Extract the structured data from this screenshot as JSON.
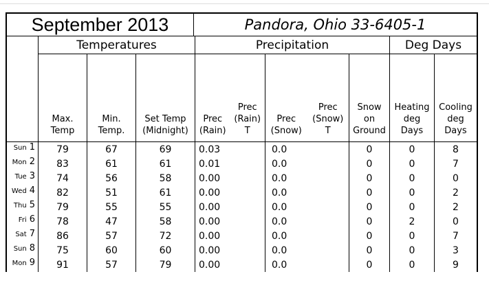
{
  "title": {
    "month": "September 2013",
    "station": "Pandora, Ohio 33-6405-1"
  },
  "groups": {
    "temperatures": "Temperatures",
    "precipitation": "Precipitation",
    "deg_days": "Deg Days"
  },
  "columns": {
    "max_temp": "Max.\nTemp",
    "min_temp": "Min.\nTemp.",
    "set_temp": "Set Temp\n(Midnight)",
    "prec_rain": "Prec\n(Rain)",
    "prec_rain_t": "Prec\n(Rain)\nT",
    "prec_snow": "Prec\n(Snow)",
    "prec_snow_t": "Prec\n(Snow)\nT",
    "snow_on_ground": "Snow\non\nGround",
    "heating_deg_days": "Heating\ndeg\nDays",
    "cooling_deg_days": "Cooling\ndeg\nDays"
  },
  "table": {
    "rows": [
      {
        "day_name": "Sun",
        "day_num": "1",
        "max": "79",
        "min": "67",
        "set": "69",
        "prec_rain": "0.03",
        "prec_rain_t": "",
        "prec_snow": "0.0",
        "prec_snow_t": "",
        "snow_ground": "0",
        "heating": "0",
        "cooling": "8"
      },
      {
        "day_name": "Mon",
        "day_num": "2",
        "max": "83",
        "min": "61",
        "set": "61",
        "prec_rain": "0.01",
        "prec_rain_t": "",
        "prec_snow": "0.0",
        "prec_snow_t": "",
        "snow_ground": "0",
        "heating": "0",
        "cooling": "7"
      },
      {
        "day_name": "Tue",
        "day_num": "3",
        "max": "74",
        "min": "56",
        "set": "58",
        "prec_rain": "0.00",
        "prec_rain_t": "",
        "prec_snow": "0.0",
        "prec_snow_t": "",
        "snow_ground": "0",
        "heating": "0",
        "cooling": "0"
      },
      {
        "day_name": "Wed",
        "day_num": "4",
        "max": "82",
        "min": "51",
        "set": "61",
        "prec_rain": "0.00",
        "prec_rain_t": "",
        "prec_snow": "0.0",
        "prec_snow_t": "",
        "snow_ground": "0",
        "heating": "0",
        "cooling": "2"
      },
      {
        "day_name": "Thu",
        "day_num": "5",
        "max": "79",
        "min": "55",
        "set": "55",
        "prec_rain": "0.00",
        "prec_rain_t": "",
        "prec_snow": "0.0",
        "prec_snow_t": "",
        "snow_ground": "0",
        "heating": "0",
        "cooling": "2"
      },
      {
        "day_name": "Fri",
        "day_num": "6",
        "max": "78",
        "min": "47",
        "set": "58",
        "prec_rain": "0.00",
        "prec_rain_t": "",
        "prec_snow": "0.0",
        "prec_snow_t": "",
        "snow_ground": "0",
        "heating": "2",
        "cooling": "0"
      },
      {
        "day_name": "Sat",
        "day_num": "7",
        "max": "86",
        "min": "57",
        "set": "72",
        "prec_rain": "0.00",
        "prec_rain_t": "",
        "prec_snow": "0.0",
        "prec_snow_t": "",
        "snow_ground": "0",
        "heating": "0",
        "cooling": "7"
      },
      {
        "day_name": "Sun",
        "day_num": "8",
        "max": "75",
        "min": "60",
        "set": "60",
        "prec_rain": "0.00",
        "prec_rain_t": "",
        "prec_snow": "0.0",
        "prec_snow_t": "",
        "snow_ground": "0",
        "heating": "0",
        "cooling": "3"
      },
      {
        "day_name": "Mon",
        "day_num": "9",
        "max": "91",
        "min": "57",
        "set": "79",
        "prec_rain": "0.00",
        "prec_rain_t": "",
        "prec_snow": "0.0",
        "prec_snow_t": "",
        "snow_ground": "0",
        "heating": "0",
        "cooling": "9"
      }
    ]
  },
  "colors": {
    "border": "#000000",
    "text": "#000000",
    "background": "#ffffff",
    "top_rule": "#dddddd"
  }
}
